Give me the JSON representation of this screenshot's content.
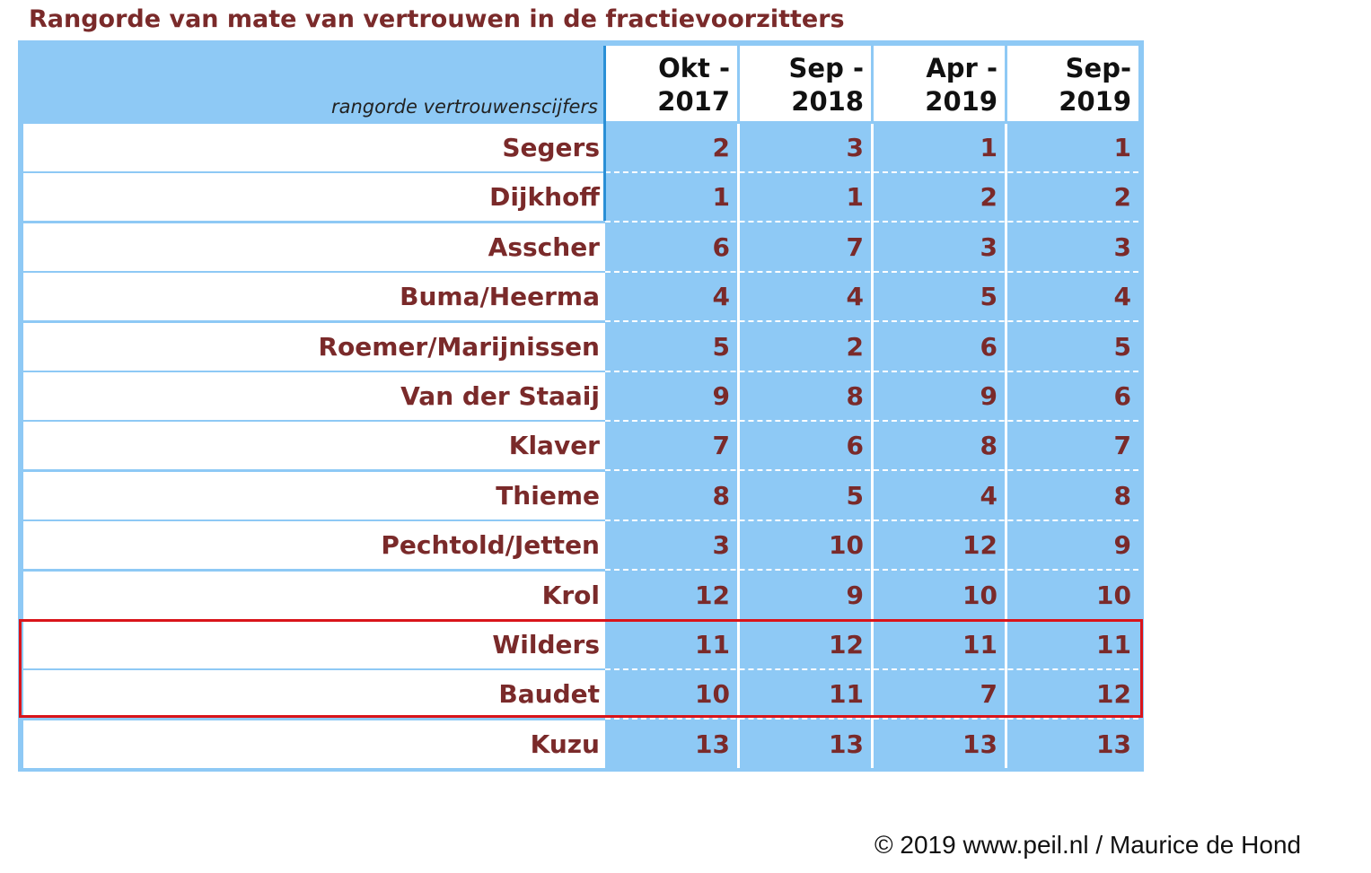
{
  "title": "Rangorde van mate van vertrouwen in de fractievoorzitters",
  "subtitle": "rangorde vertrouwenscijfers",
  "credit": "© 2019  www.peil.nl / Maurice de Hond",
  "colors": {
    "title": "#7a2a2a",
    "header_bg": "#8ec9f5",
    "highlight": "#d9141a"
  },
  "chart_data": {
    "type": "table",
    "title": "Rangorde van mate van vertrouwen in de fractievoorzitters",
    "row_header": "rangorde vertrouwenscijfers",
    "columns": [
      {
        "line1": "Okt -",
        "line2": "2017"
      },
      {
        "line1": "Sep -",
        "line2": "2018"
      },
      {
        "line1": "Apr -",
        "line2": "2019"
      },
      {
        "line1": "Sep-",
        "line2": "2019"
      }
    ],
    "rows": [
      {
        "name": "Segers",
        "values": [
          2,
          3,
          1,
          1
        ]
      },
      {
        "name": "Dijkhoff",
        "values": [
          1,
          1,
          2,
          2
        ]
      },
      {
        "name": "Asscher",
        "values": [
          6,
          7,
          3,
          3
        ]
      },
      {
        "name": "Buma/Heerma",
        "values": [
          4,
          4,
          5,
          4
        ]
      },
      {
        "name": "Roemer/Marijnissen",
        "values": [
          5,
          2,
          6,
          5
        ]
      },
      {
        "name": "Van der Staaij",
        "values": [
          9,
          8,
          9,
          6
        ]
      },
      {
        "name": "Klaver",
        "values": [
          7,
          6,
          8,
          7
        ]
      },
      {
        "name": "Thieme",
        "values": [
          8,
          5,
          4,
          8
        ]
      },
      {
        "name": "Pechtold/Jetten",
        "values": [
          3,
          10,
          12,
          9
        ]
      },
      {
        "name": "Krol",
        "values": [
          12,
          9,
          10,
          10
        ]
      },
      {
        "name": "Wilders",
        "values": [
          11,
          12,
          11,
          11
        ]
      },
      {
        "name": "Baudet",
        "values": [
          10,
          11,
          7,
          12
        ]
      },
      {
        "name": "Kuzu",
        "values": [
          13,
          13,
          13,
          13
        ]
      }
    ],
    "highlighted_rows": [
      "Wilders",
      "Baudet"
    ]
  }
}
